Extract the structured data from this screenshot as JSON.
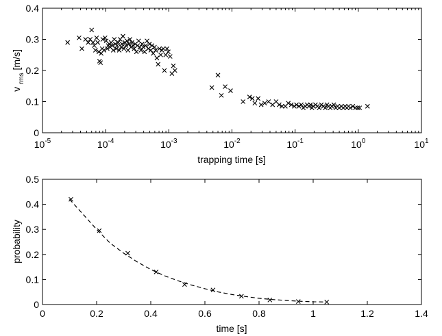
{
  "chart_data": [
    {
      "type": "scatter",
      "xscale": "log",
      "xlim": [
        1e-05,
        10
      ],
      "ylim": [
        0,
        0.4
      ],
      "xticks": [
        {
          "base": "10",
          "exp": "-5"
        },
        {
          "base": "10",
          "exp": "-4"
        },
        {
          "base": "10",
          "exp": "-3"
        },
        {
          "base": "10",
          "exp": "-2"
        },
        {
          "base": "10",
          "exp": "-1"
        },
        {
          "base": "10",
          "exp": "0"
        },
        {
          "base": "10",
          "exp": "1"
        }
      ],
      "yticks": [
        "0",
        "0.1",
        "0.2",
        "0.3",
        "0.4"
      ],
      "xlabel": "trapping time [s]",
      "ylabel_main": "v",
      "ylabel_sub": "rms",
      "ylabel_unit": "[m/s]",
      "marker": "x",
      "color": "#000000",
      "points": [
        [
          2.5e-05,
          0.29
        ],
        [
          3.8e-05,
          0.305
        ],
        [
          4.2e-05,
          0.27
        ],
        [
          4.8e-05,
          0.3
        ],
        [
          5.3e-05,
          0.29
        ],
        [
          5.7e-05,
          0.3
        ],
        [
          6e-05,
          0.33
        ],
        [
          6.3e-05,
          0.29
        ],
        [
          6.6e-05,
          0.28
        ],
        [
          6.9e-05,
          0.265
        ],
        [
          7.2e-05,
          0.305
        ],
        [
          7.5e-05,
          0.29
        ],
        [
          7.8e-05,
          0.26
        ],
        [
          8e-05,
          0.23
        ],
        [
          8.3e-05,
          0.225
        ],
        [
          8.5e-05,
          0.255
        ],
        [
          8.8e-05,
          0.27
        ],
        [
          9e-05,
          0.3
        ],
        [
          9.4e-05,
          0.265
        ],
        [
          9.8e-05,
          0.305
        ],
        [
          0.000102,
          0.295
        ],
        [
          0.000106,
          0.27
        ],
        [
          0.00011,
          0.28
        ],
        [
          0.000114,
          0.285
        ],
        [
          0.000118,
          0.275
        ],
        [
          0.000122,
          0.29
        ],
        [
          0.000127,
          0.28
        ],
        [
          0.000132,
          0.265
        ],
        [
          0.000137,
          0.3
        ],
        [
          0.000142,
          0.285
        ],
        [
          0.000147,
          0.27
        ],
        [
          0.000152,
          0.28
        ],
        [
          0.000158,
          0.29
        ],
        [
          0.000164,
          0.265
        ],
        [
          0.00017,
          0.3
        ],
        [
          0.000176,
          0.275
        ],
        [
          0.000182,
          0.285
        ],
        [
          0.000188,
          0.31
        ],
        [
          0.000195,
          0.27
        ],
        [
          0.000202,
          0.29
        ],
        [
          0.00021,
          0.28
        ],
        [
          0.000218,
          0.295
        ],
        [
          0.000226,
          0.265
        ],
        [
          0.000234,
          0.285
        ],
        [
          0.000243,
          0.3
        ],
        [
          0.000252,
          0.275
        ],
        [
          0.000262,
          0.29
        ],
        [
          0.000272,
          0.28
        ],
        [
          0.000283,
          0.27
        ],
        [
          0.000295,
          0.285
        ],
        [
          0.000307,
          0.26
        ],
        [
          0.00032,
          0.28
        ],
        [
          0.000333,
          0.295
        ],
        [
          0.000347,
          0.275
        ],
        [
          0.000362,
          0.265
        ],
        [
          0.000378,
          0.285
        ],
        [
          0.000395,
          0.275
        ],
        [
          0.000413,
          0.26
        ],
        [
          0.000432,
          0.28
        ],
        [
          0.000452,
          0.295
        ],
        [
          0.000473,
          0.27
        ],
        [
          0.000495,
          0.285
        ],
        [
          0.000518,
          0.265
        ],
        [
          0.000542,
          0.28
        ],
        [
          0.000567,
          0.255
        ],
        [
          0.000593,
          0.275
        ],
        [
          0.00062,
          0.265
        ],
        [
          0.000648,
          0.24
        ],
        [
          0.000678,
          0.22
        ],
        [
          0.00071,
          0.27
        ],
        [
          0.000743,
          0.25
        ],
        [
          0.000778,
          0.265
        ],
        [
          0.000815,
          0.27
        ],
        [
          0.000853,
          0.2
        ],
        [
          0.000893,
          0.25
        ],
        [
          0.000935,
          0.27
        ],
        [
          0.00098,
          0.26
        ],
        [
          0.00105,
          0.245
        ],
        [
          0.00112,
          0.19
        ],
        [
          0.00118,
          0.215
        ],
        [
          0.00125,
          0.2
        ],
        [
          0.0048,
          0.145
        ],
        [
          0.006,
          0.185
        ],
        [
          0.0068,
          0.12
        ],
        [
          0.0078,
          0.148
        ],
        [
          0.0095,
          0.135
        ],
        [
          0.015,
          0.1
        ],
        [
          0.019,
          0.115
        ],
        [
          0.021,
          0.11
        ],
        [
          0.023,
          0.095
        ],
        [
          0.026,
          0.11
        ],
        [
          0.029,
          0.09
        ],
        [
          0.033,
          0.095
        ],
        [
          0.038,
          0.1
        ],
        [
          0.044,
          0.09
        ],
        [
          0.05,
          0.1
        ],
        [
          0.056,
          0.09
        ],
        [
          0.062,
          0.085
        ],
        [
          0.07,
          0.085
        ],
        [
          0.078,
          0.095
        ],
        [
          0.087,
          0.09
        ],
        [
          0.097,
          0.085
        ],
        [
          0.105,
          0.09
        ],
        [
          0.115,
          0.085
        ],
        [
          0.125,
          0.09
        ],
        [
          0.135,
          0.08
        ],
        [
          0.145,
          0.085
        ],
        [
          0.155,
          0.09
        ],
        [
          0.165,
          0.085
        ],
        [
          0.175,
          0.09
        ],
        [
          0.185,
          0.08
        ],
        [
          0.195,
          0.085
        ],
        [
          0.21,
          0.09
        ],
        [
          0.225,
          0.085
        ],
        [
          0.24,
          0.08
        ],
        [
          0.26,
          0.09
        ],
        [
          0.28,
          0.085
        ],
        [
          0.3,
          0.08
        ],
        [
          0.32,
          0.09
        ],
        [
          0.34,
          0.085
        ],
        [
          0.36,
          0.08
        ],
        [
          0.38,
          0.085
        ],
        [
          0.41,
          0.09
        ],
        [
          0.44,
          0.08
        ],
        [
          0.47,
          0.085
        ],
        [
          0.5,
          0.08
        ],
        [
          0.54,
          0.085
        ],
        [
          0.58,
          0.08
        ],
        [
          0.62,
          0.085
        ],
        [
          0.66,
          0.08
        ],
        [
          0.7,
          0.085
        ],
        [
          0.75,
          0.08
        ],
        [
          0.82,
          0.085
        ],
        [
          0.9,
          0.08
        ],
        [
          0.98,
          0.08
        ],
        [
          1.05,
          0.08
        ],
        [
          1.4,
          0.085
        ]
      ]
    },
    {
      "type": "scatter",
      "xlim": [
        0,
        1.4
      ],
      "ylim": [
        0,
        0.5
      ],
      "xticks": [
        "0",
        "0.2",
        "0.4",
        "0.6",
        "0.8",
        "1",
        "1.2",
        "1.4"
      ],
      "yticks": [
        "0",
        "0.1",
        "0.2",
        "0.3",
        "0.4",
        "0.5"
      ],
      "xlabel": "time [s]",
      "ylabel": "probability",
      "marker": "x",
      "color": "#000000",
      "points": [
        [
          0.105,
          0.42
        ],
        [
          0.21,
          0.295
        ],
        [
          0.315,
          0.205
        ],
        [
          0.42,
          0.13
        ],
        [
          0.525,
          0.08
        ],
        [
          0.63,
          0.058
        ],
        [
          0.735,
          0.033
        ],
        [
          0.84,
          0.018
        ],
        [
          0.945,
          0.012
        ],
        [
          1.05,
          0.01
        ]
      ],
      "fit": {
        "style": "dashed",
        "x": [
          0.1,
          0.15,
          0.2,
          0.25,
          0.3,
          0.35,
          0.4,
          0.45,
          0.5,
          0.55,
          0.6,
          0.65,
          0.7,
          0.75,
          0.8,
          0.85,
          0.9,
          0.95,
          1.0,
          1.05
        ],
        "y": [
          0.42,
          0.36,
          0.3,
          0.245,
          0.205,
          0.17,
          0.14,
          0.115,
          0.095,
          0.078,
          0.063,
          0.05,
          0.04,
          0.032,
          0.025,
          0.02,
          0.016,
          0.013,
          0.011,
          0.01
        ]
      }
    }
  ]
}
